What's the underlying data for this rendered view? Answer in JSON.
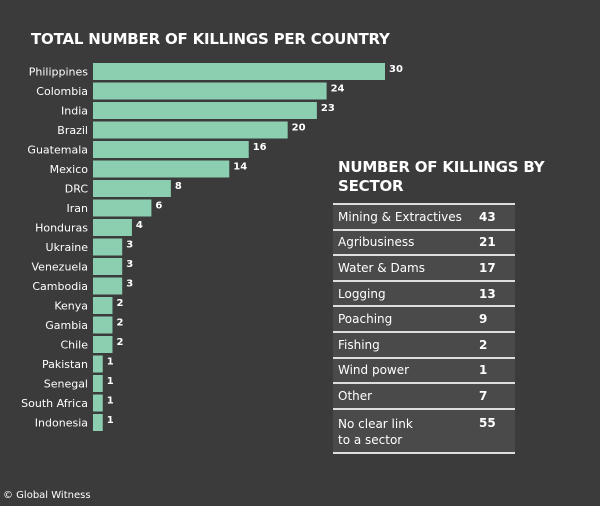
{
  "chart_data": [
    {
      "type": "bar",
      "orientation": "horizontal",
      "title": "TOTAL NUMBER OF KILLINGS PER COUNTRY",
      "categories": [
        "Philippines",
        "Colombia",
        "India",
        "Brazil",
        "Guatemala",
        "Mexico",
        "DRC",
        "Iran",
        "Honduras",
        "Ukraine",
        "Venezuela",
        "Cambodia",
        "Kenya",
        "Gambia",
        "Chile",
        "Pakistan",
        "Senegal",
        "South Africa",
        "Indonesia"
      ],
      "values": [
        30,
        24,
        23,
        20,
        16,
        14,
        8,
        6,
        4,
        3,
        3,
        3,
        2,
        2,
        2,
        1,
        1,
        1,
        1
      ],
      "data_labels": true,
      "grid": false,
      "colors": {
        "bar": "#8ccfb0",
        "background": "#3b3b3b"
      }
    },
    {
      "type": "table",
      "title": "NUMBER OF KILLINGS BY SECTOR",
      "rows": [
        {
          "sector": "Mining & Extractives",
          "value": "43"
        },
        {
          "sector": "Agribusiness",
          "value": "21"
        },
        {
          "sector": "Water & Dams",
          "value": "17"
        },
        {
          "sector": "Logging",
          "value": "13"
        },
        {
          "sector": "Poaching",
          "value": "9"
        },
        {
          "sector": "Fishing",
          "value": "2"
        },
        {
          "sector": "Wind power",
          "value": "1"
        },
        {
          "sector": "Other",
          "value": "7"
        },
        {
          "sector": "No clear link to a sector",
          "value": "55"
        }
      ]
    }
  ],
  "credit": "© Global Witness"
}
